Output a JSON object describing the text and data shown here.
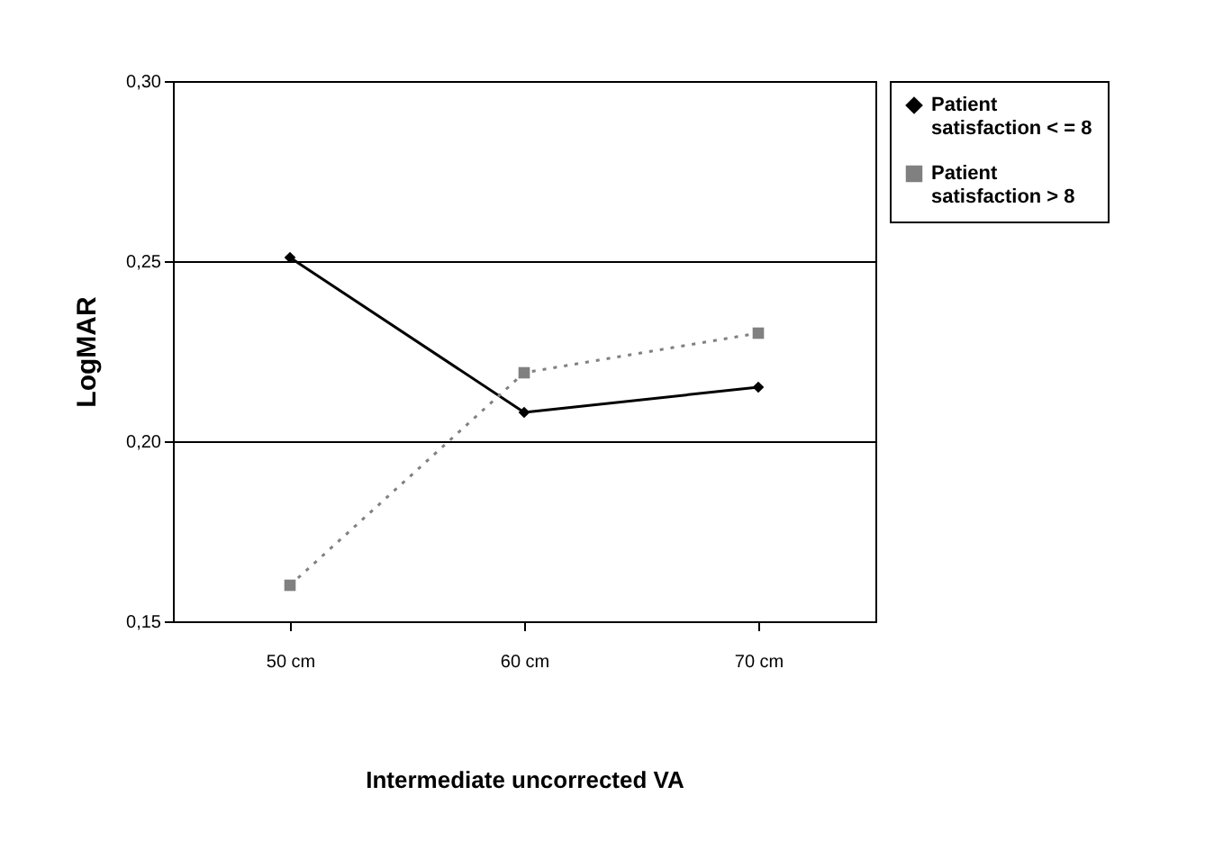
{
  "chart_data": {
    "type": "line",
    "xlabel": "Intermediate uncorrected VA",
    "ylabel": "LogMAR",
    "categories": [
      "50 cm",
      "60 cm",
      "70 cm"
    ],
    "series": [
      {
        "name": "Patient satisfaction < = 8",
        "color": "#000000",
        "marker": "diamond",
        "line_style": "solid",
        "values": [
          0.251,
          0.208,
          0.215
        ]
      },
      {
        "name": "Patient satisfaction > 8",
        "color": "#808080",
        "marker": "square",
        "line_style": "dotted",
        "values": [
          0.16,
          0.219,
          0.23
        ]
      }
    ],
    "ylim": [
      0.15,
      0.3
    ],
    "yticks": [
      {
        "value": 0.15,
        "label": "0,15"
      },
      {
        "value": 0.2,
        "label": "0,20"
      },
      {
        "value": 0.25,
        "label": "0,25"
      },
      {
        "value": 0.3,
        "label": "0,30"
      }
    ],
    "grid": "y",
    "legend": "right"
  }
}
